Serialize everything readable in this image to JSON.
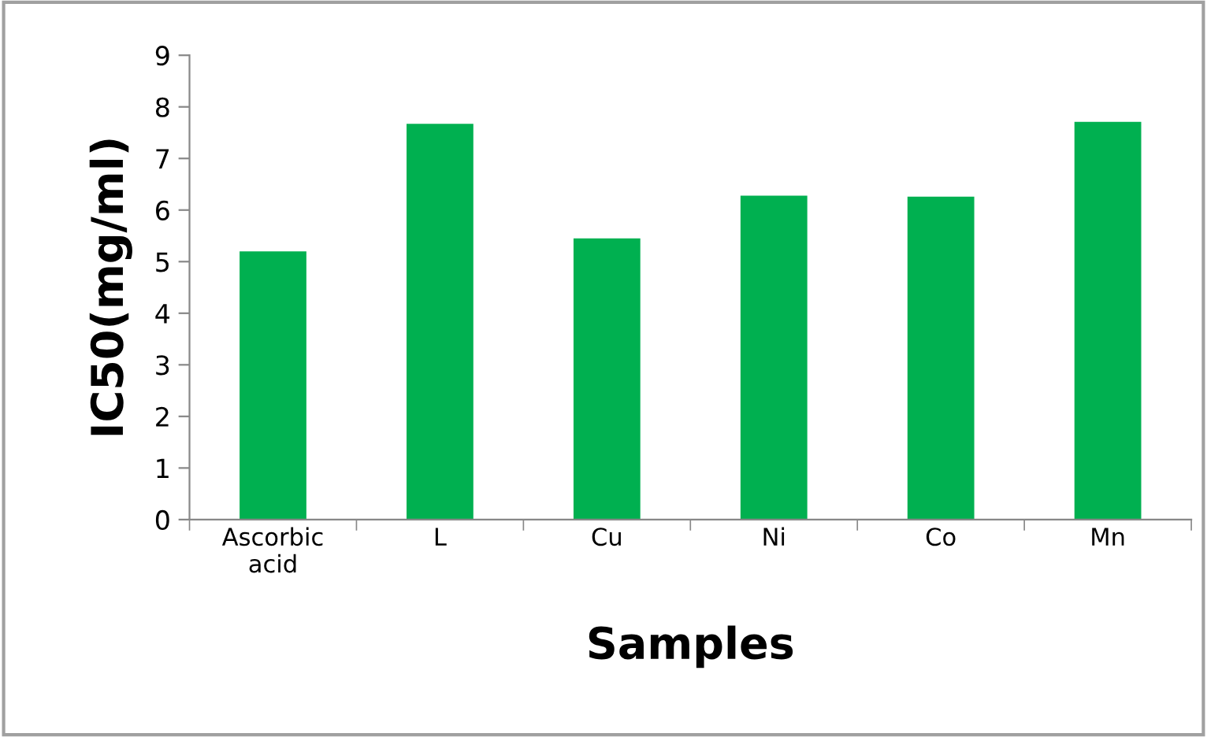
{
  "chart_data": {
    "type": "bar",
    "xlabel": "Samples",
    "ylabel": "IC50(mg/ml)",
    "categories": [
      "Ascorbic\nacid",
      "L",
      "Cu",
      "Ni",
      "Co",
      "Mn"
    ],
    "values": [
      5.2,
      7.67,
      5.45,
      6.28,
      6.26,
      7.71
    ],
    "color": "#00b050",
    "ylim": [
      0,
      9
    ],
    "yticks": [
      0,
      1,
      2,
      3,
      4,
      5,
      6,
      7,
      8,
      9
    ],
    "grid": false,
    "legend": false
  }
}
